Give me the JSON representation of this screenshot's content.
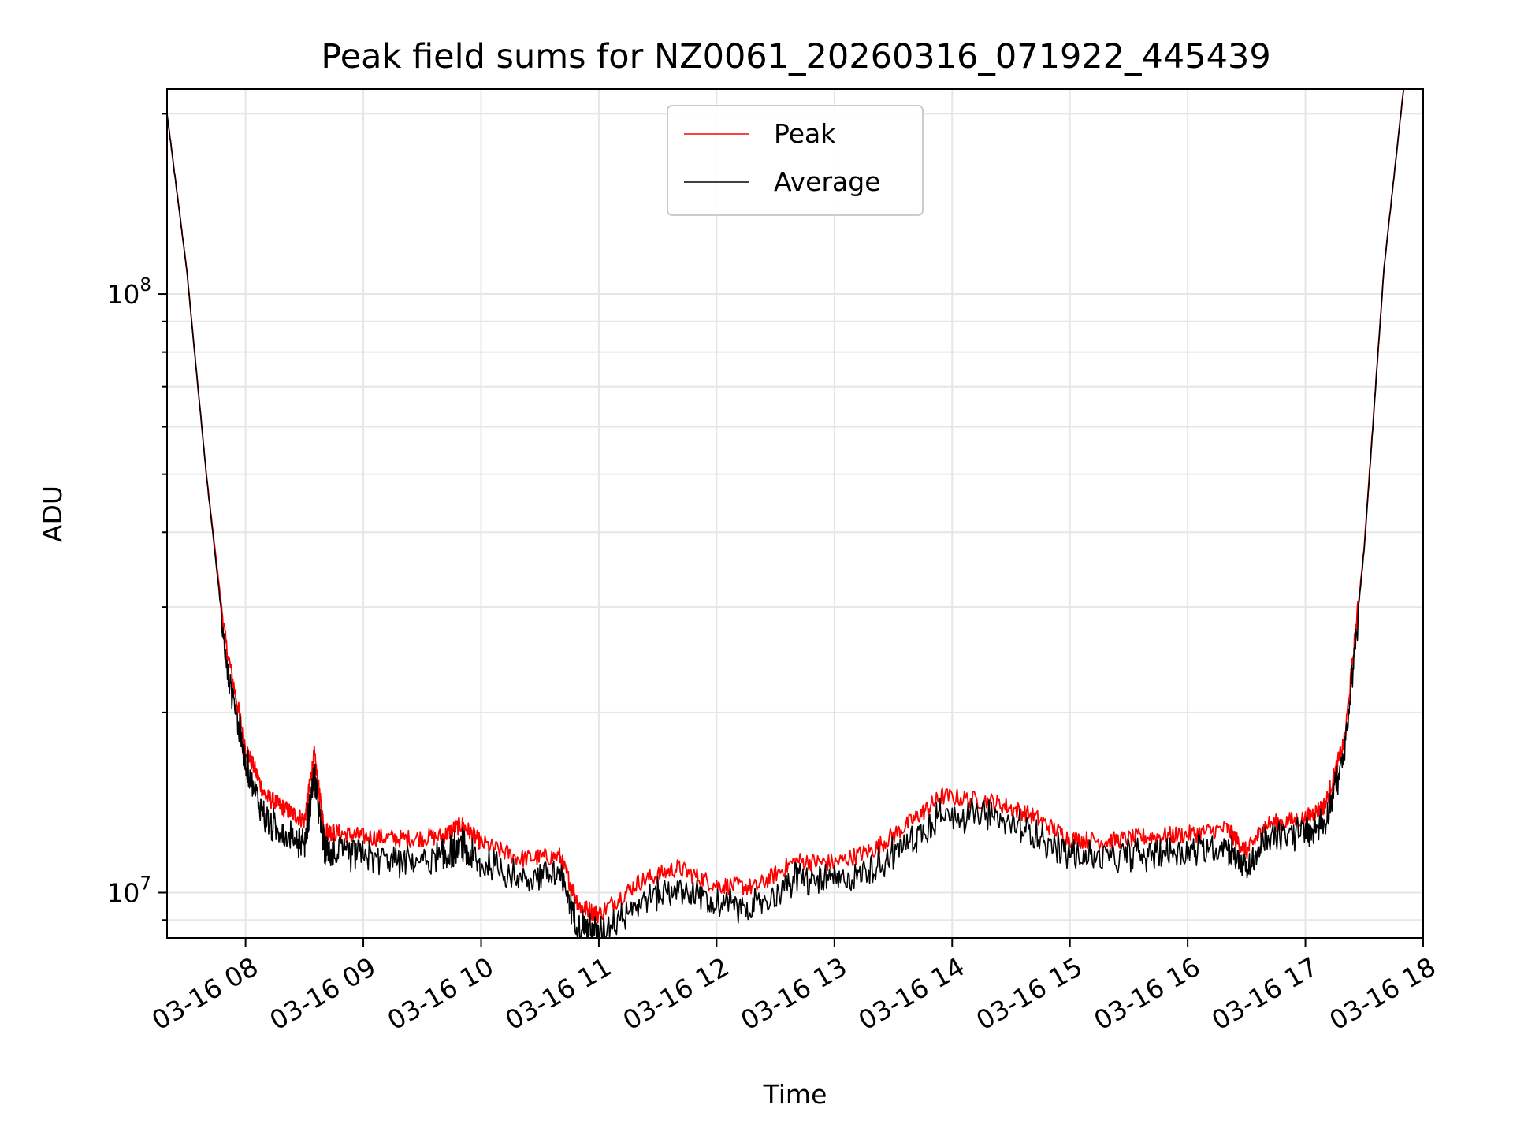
{
  "chart_data": {
    "type": "line",
    "title": "Peak field sums for NZ0061_20260316_071922_445439",
    "xlabel": "Time",
    "ylabel": "ADU",
    "yscale": "log",
    "grid": true,
    "legend_position": "upper-center",
    "xlim": [
      "2026-03-16 07:20",
      "2026-03-16 18:00"
    ],
    "ylim": [
      8400000,
      220000000
    ],
    "x_ticks": [
      "03-16 08",
      "03-16 09",
      "03-16 10",
      "03-16 11",
      "03-16 12",
      "03-16 13",
      "03-16 14",
      "03-16 15",
      "03-16 16",
      "03-16 17",
      "03-16 18"
    ],
    "y_ticks": [
      {
        "base": "10",
        "exp": "7",
        "value": 10000000
      },
      {
        "base": "10",
        "exp": "8",
        "value": 100000000
      }
    ],
    "x": [
      "2026-03-16 07:20",
      "2026-03-16 07:30",
      "2026-03-16 07:40",
      "2026-03-16 07:50",
      "2026-03-16 08:00",
      "2026-03-16 08:10",
      "2026-03-16 08:20",
      "2026-03-16 08:30",
      "2026-03-16 08:35",
      "2026-03-16 08:40",
      "2026-03-16 08:45",
      "2026-03-16 09:00",
      "2026-03-16 09:20",
      "2026-03-16 09:40",
      "2026-03-16 09:50",
      "2026-03-16 10:00",
      "2026-03-16 10:20",
      "2026-03-16 10:40",
      "2026-03-16 10:50",
      "2026-03-16 11:00",
      "2026-03-16 11:20",
      "2026-03-16 11:40",
      "2026-03-16 12:00",
      "2026-03-16 12:20",
      "2026-03-16 12:40",
      "2026-03-16 13:00",
      "2026-03-16 13:20",
      "2026-03-16 13:40",
      "2026-03-16 13:55",
      "2026-03-16 14:20",
      "2026-03-16 14:40",
      "2026-03-16 15:00",
      "2026-03-16 15:20",
      "2026-03-16 15:40",
      "2026-03-16 16:00",
      "2026-03-16 16:20",
      "2026-03-16 16:30",
      "2026-03-16 16:40",
      "2026-03-16 17:00",
      "2026-03-16 17:10",
      "2026-03-16 17:20",
      "2026-03-16 17:30",
      "2026-03-16 17:40",
      "2026-03-16 17:50"
    ],
    "series": [
      {
        "name": "Peak",
        "color": "#ff0000",
        "values": [
          200000000,
          110000000,
          50000000,
          26000000,
          17500000,
          14500000,
          13800000,
          13200000,
          17000000,
          12700000,
          12600000,
          12400000,
          12300000,
          12400000,
          13000000,
          12100000,
          11400000,
          11500000,
          9500000,
          9200000,
          10400000,
          11000000,
          10300000,
          10200000,
          11300000,
          11200000,
          11800000,
          13200000,
          14500000,
          14200000,
          13500000,
          12300000,
          12200000,
          12400000,
          12500000,
          12800000,
          11700000,
          13000000,
          13300000,
          14000000,
          18000000,
          38000000,
          110000000,
          220000000
        ]
      },
      {
        "name": "Average",
        "color": "#000000",
        "values": [
          200000000,
          110000000,
          50000000,
          25000000,
          17000000,
          13500000,
          12900000,
          12400000,
          16000000,
          12200000,
          12000000,
          11800000,
          11600000,
          11700000,
          12300000,
          11400000,
          10900000,
          11000000,
          9000000,
          8800000,
          9900000,
          10500000,
          9800000,
          9700000,
          10800000,
          10700000,
          11300000,
          12600000,
          13900000,
          13700000,
          13000000,
          11800000,
          11700000,
          11900000,
          12000000,
          12300000,
          11200000,
          12600000,
          12900000,
          13600000,
          17500000,
          37500000,
          110000000,
          220000000
        ]
      }
    ]
  }
}
